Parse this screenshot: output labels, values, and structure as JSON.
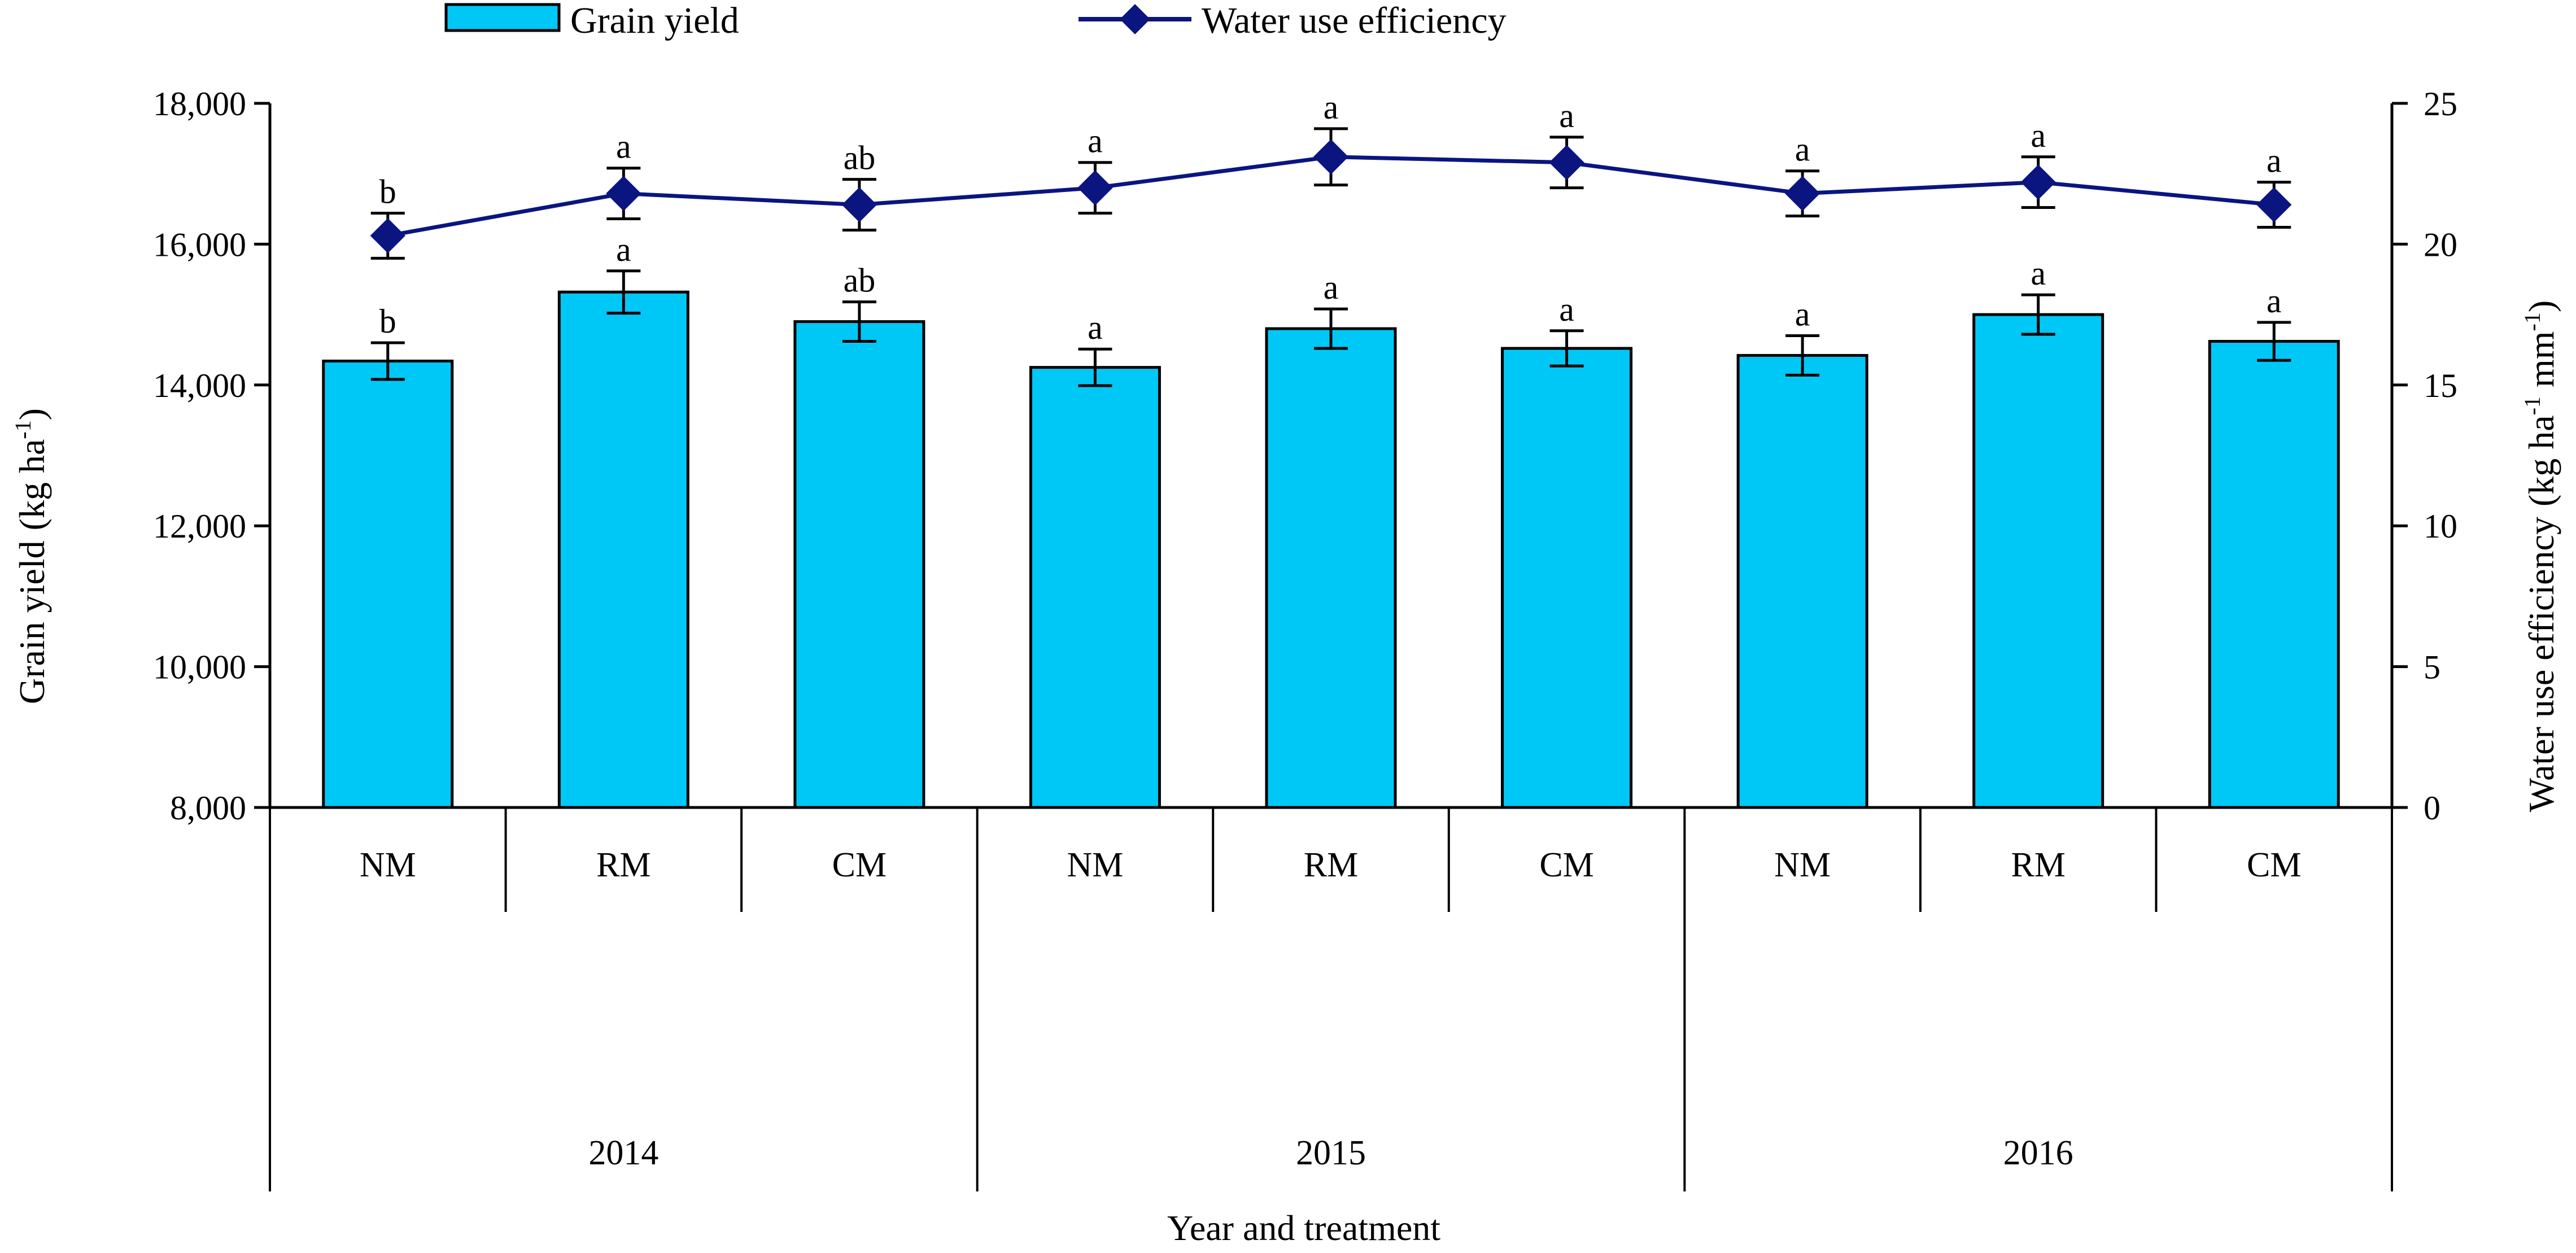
{
  "chart_data": {
    "type": "bar+line",
    "legend": {
      "placement": "top-center",
      "items": [
        {
          "label": "Grain yield",
          "kind": "bar"
        },
        {
          "label": "Water use efficiency",
          "kind": "line-diamond"
        }
      ]
    },
    "colors": {
      "bar": "#00c8f6",
      "line": "#0a1580",
      "axis": "#000000"
    },
    "categories": [
      "NM",
      "RM",
      "CM",
      "NM",
      "RM",
      "CM",
      "NM",
      "RM",
      "CM"
    ],
    "groups": [
      {
        "label": "2014",
        "span": 3
      },
      {
        "label": "2015",
        "span": 3
      },
      {
        "label": "2016",
        "span": 3
      }
    ],
    "left_axis": {
      "ylim": [
        8000,
        18000
      ],
      "ticks": [
        8000,
        10000,
        12000,
        14000,
        16000,
        18000
      ],
      "tick_labels": [
        "8,000",
        "10,000",
        "12,000",
        "14,000",
        "16,000",
        "18,000"
      ],
      "title": "Grain yield",
      "unit_main": "(kg ha",
      "unit_sup": "-1",
      "unit_end": ")"
    },
    "right_axis": {
      "ylim": [
        0,
        25
      ],
      "ticks": [
        0,
        5,
        10,
        15,
        20,
        25
      ],
      "tick_labels": [
        "0",
        "5",
        "10",
        "15",
        "20",
        "25"
      ],
      "title": "Water use efficiency",
      "unit_main": "(kg ha",
      "unit_sup1": "-1",
      "unit_mid": " mm",
      "unit_sup2": "-1",
      "unit_end": ")"
    },
    "xlabel": "Year and treatment",
    "series": [
      {
        "name": "Grain yield",
        "axis": "left",
        "type": "bar",
        "values": [
          14340,
          15320,
          14900,
          14250,
          14800,
          14520,
          14420,
          15000,
          14620
        ],
        "errors": [
          260,
          300,
          280,
          260,
          280,
          250,
          280,
          280,
          270
        ],
        "significance": [
          "b",
          "a",
          "ab",
          "a",
          "a",
          "a",
          "a",
          "a",
          "a"
        ]
      },
      {
        "name": "Water use efficiency",
        "axis": "right",
        "type": "line",
        "values": [
          20.3,
          21.8,
          21.4,
          22.0,
          23.1,
          22.9,
          21.8,
          22.2,
          21.4
        ],
        "errors": [
          0.8,
          0.9,
          0.9,
          0.9,
          1.0,
          0.9,
          0.8,
          0.9,
          0.8
        ],
        "significance": [
          "b",
          "a",
          "ab",
          "a",
          "a",
          "a",
          "a",
          "a",
          "a"
        ]
      }
    ]
  }
}
